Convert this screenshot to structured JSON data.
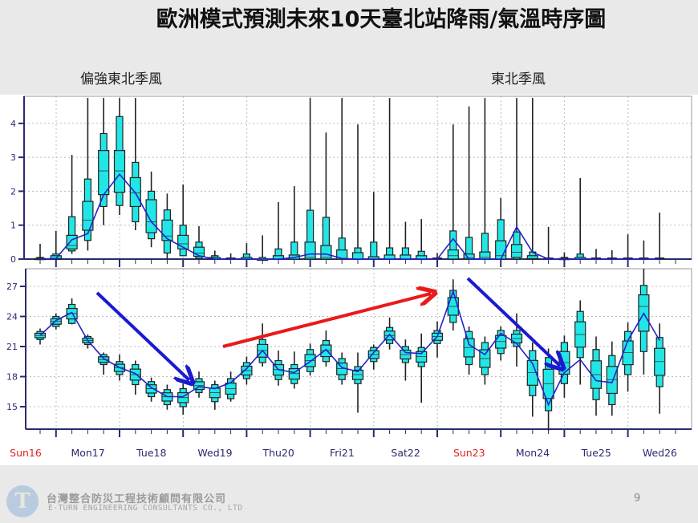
{
  "title": "歐洲模式預測未來10天臺北站降雨/氣溫時序圖",
  "annotations": {
    "left_note": "偏強東北季風",
    "right_note": "東北季風"
  },
  "footer": {
    "company_cn": "台灣整合防災工程技術顧問有限公司",
    "company_en": "E-TURN ENGINEERING CONSULTANTS CO., LTD",
    "logo_text": "T",
    "page_number": "9"
  },
  "colors": {
    "box_fill": "#22e6e6",
    "mean_line": "#2222cc",
    "weekend_label": "#dd2222",
    "weekday_label": "#2a2a70",
    "arrow_blue": "#1a1ad0",
    "arrow_red": "#e81a1a"
  },
  "chart_data": [
    {
      "type": "boxplot",
      "panel": "precipitation",
      "x_labels": [
        "Sun16",
        "Mon17",
        "Tue18",
        "Wed19",
        "Thu20",
        "Fri21",
        "Sat22",
        "Sun23",
        "Mon24",
        "Tue25",
        "Wed26"
      ],
      "x_label_colors": [
        "red",
        "navy",
        "navy",
        "navy",
        "navy",
        "navy",
        "navy",
        "red",
        "navy",
        "navy",
        "navy"
      ],
      "step_hours": 6,
      "yticks": [
        0,
        1,
        2,
        3,
        4
      ],
      "ylim": [
        0,
        4.8
      ],
      "grid": true,
      "max": [
        0.45,
        0.83,
        3.07,
        5,
        5,
        5,
        5,
        2.58,
        1.93,
        2.2,
        0.97,
        0.25,
        0.17,
        0.47,
        0.7,
        1.68,
        2.15,
        5,
        3.73,
        5,
        3.97,
        1.98,
        5,
        1.1,
        1.18,
        0.18,
        3.97,
        4.5,
        5,
        1.8,
        5,
        5,
        0.95,
        0.2,
        2.39,
        0.3,
        0.26,
        0.73,
        0.55,
        1.37
      ],
      "p90": [
        0.05,
        0.15,
        1.25,
        2.36,
        3.7,
        4.2,
        2.85,
        2.0,
        1.45,
        1.0,
        0.5,
        0.1,
        0,
        0.15,
        0.05,
        0.3,
        0.5,
        1.44,
        1.23,
        0.62,
        0.33,
        0.5,
        0.33,
        0.33,
        0.23,
        0,
        0.83,
        0.64,
        0.76,
        1.16,
        0.8,
        0.21,
        0,
        0.05,
        0.15,
        0,
        0,
        0,
        0,
        0
      ],
      "p75": [
        0.02,
        0.1,
        0.7,
        1.7,
        3.2,
        3.2,
        2.4,
        1.75,
        1.15,
        0.7,
        0.35,
        0.05,
        0,
        0.05,
        0,
        0.1,
        0.12,
        0.5,
        0.4,
        0.27,
        0.19,
        0.07,
        0.12,
        0.12,
        0.1,
        0,
        0.27,
        0.15,
        0.21,
        0.54,
        0.43,
        0.1,
        0,
        0.02,
        0.05,
        0,
        0,
        0,
        0,
        0
      ],
      "median": [
        0,
        0.02,
        0.4,
        1.15,
        2.6,
        2.6,
        1.95,
        1.1,
        0.68,
        0.45,
        0.18,
        0,
        0,
        0,
        0,
        0,
        0,
        0.05,
        0.05,
        0,
        0,
        0,
        0,
        0,
        0,
        0,
        0.1,
        0.03,
        0.05,
        0.1,
        0.2,
        0.02,
        0,
        0,
        0,
        0,
        0,
        0,
        0,
        0
      ],
      "p25": [
        0,
        0,
        0.3,
        0.85,
        1.9,
        1.97,
        1.55,
        0.78,
        0.55,
        0.3,
        0.08,
        0,
        0,
        0,
        0,
        0,
        0,
        0,
        0,
        0,
        0,
        0,
        0,
        0,
        0,
        0,
        0,
        0,
        0,
        0,
        0.05,
        0,
        0,
        0,
        0,
        0,
        0,
        0,
        0,
        0
      ],
      "p10": [
        0,
        0,
        0.24,
        0.55,
        1.55,
        1.58,
        1.1,
        0.6,
        0.18,
        0.1,
        0.02,
        0,
        0,
        0,
        0,
        0,
        0,
        0,
        0,
        0,
        0,
        0,
        0,
        0,
        0,
        0,
        0,
        0,
        0,
        0,
        0,
        0,
        0,
        0,
        0,
        0,
        0,
        0,
        0,
        0
      ],
      "min": [
        0,
        0,
        0.15,
        0.25,
        1.0,
        1.3,
        0.85,
        0.35,
        0,
        0.1,
        0,
        0,
        0,
        0,
        0,
        0,
        0,
        0,
        0,
        0,
        0,
        0,
        0,
        0,
        0,
        0,
        0,
        0,
        0,
        0,
        0,
        0,
        0,
        0,
        0,
        0,
        0,
        0,
        0,
        0
      ],
      "mean": [
        0,
        0.02,
        0.57,
        0.75,
        1.9,
        2.5,
        1.95,
        1.1,
        0.6,
        0.35,
        0.1,
        0,
        0,
        0,
        0,
        0,
        0.05,
        0.15,
        0.15,
        0.02,
        0,
        0,
        0,
        0,
        0,
        0,
        0.6,
        0,
        0,
        0,
        0.95,
        0.2,
        0,
        0,
        0,
        0,
        0,
        0,
        0,
        0
      ]
    },
    {
      "type": "boxplot",
      "panel": "temperature",
      "yticks": [
        15,
        18,
        21,
        24,
        27
      ],
      "ylim": [
        12.8,
        28.8
      ],
      "grid": true,
      "max": [
        22.8,
        24.3,
        25.8,
        22.2,
        20.4,
        20.2,
        19.6,
        17.9,
        17.2,
        17.3,
        18.5,
        17.6,
        18.5,
        20.0,
        23.3,
        20.6,
        20.5,
        21.3,
        22.6,
        20.4,
        20.4,
        21.2,
        23.9,
        21.7,
        22.3,
        23.5,
        27.7,
        23.0,
        22.0,
        23.0,
        24.3,
        21.4,
        20.8,
        22.1,
        25.6,
        22.0,
        21.5,
        23.4,
        28.8,
        23.3
      ],
      "p90": [
        22.5,
        24.0,
        25.2,
        22.0,
        20.2,
        19.5,
        19.2,
        17.5,
        16.7,
        16.8,
        17.8,
        17.2,
        17.8,
        19.4,
        21.7,
        19.6,
        19.2,
        20.7,
        21.6,
        19.8,
        19.0,
        20.9,
        22.9,
        21.0,
        20.9,
        22.6,
        26.6,
        22.5,
        21.4,
        22.6,
        22.6,
        20.6,
        19.9,
        21.4,
        24.5,
        20.7,
        20.1,
        22.5,
        27.1,
        21.9
      ],
      "median": [
        22.1,
        23.5,
        24.3,
        21.6,
        19.7,
        18.9,
        18.2,
        16.8,
        16.0,
        15.9,
        17.1,
        16.4,
        16.8,
        18.6,
        20.6,
        18.7,
        18.3,
        19.6,
        20.6,
        18.8,
        18.2,
        20.2,
        22.1,
        20.2,
        20.0,
        22.0,
        25.0,
        20.9,
        19.8,
        21.5,
        21.8,
        18.4,
        17.3,
        19.4,
        22.2,
        18.2,
        17.7,
        20.4,
        25.0,
        19.5
      ],
      "p10": [
        21.7,
        23.0,
        23.3,
        21.2,
        19.2,
        18.2,
        17.2,
        16.0,
        15.2,
        15.0,
        16.4,
        15.5,
        15.8,
        17.8,
        19.4,
        17.7,
        17.3,
        18.5,
        19.5,
        17.7,
        17.3,
        19.5,
        21.3,
        19.4,
        19.0,
        21.3,
        23.4,
        19.2,
        18.2,
        20.3,
        21.0,
        16.1,
        14.6,
        17.3,
        19.9,
        15.7,
        15.2,
        18.2,
        20.5,
        17.0
      ],
      "min": [
        21.2,
        22.7,
        23.2,
        20.8,
        18.2,
        17.6,
        16.2,
        15.5,
        14.7,
        14.2,
        15.9,
        14.7,
        15.5,
        17.2,
        19.0,
        17.1,
        16.8,
        18.1,
        19.0,
        17.2,
        14.4,
        18.7,
        20.7,
        17.6,
        15.4,
        19.9,
        22.6,
        18.2,
        17.2,
        19.6,
        19.0,
        14.0,
        12.6,
        15.9,
        17.2,
        14.1,
        14.1,
        16.5,
        18.2,
        14.3
      ],
      "mean": [
        22.1,
        23.6,
        24.4,
        21.6,
        19.8,
        18.9,
        18.3,
        16.9,
        16.0,
        16.0,
        17.0,
        16.8,
        17.4,
        18.8,
        20.6,
        18.7,
        18.4,
        19.5,
        20.7,
        18.9,
        18.5,
        20.4,
        22.2,
        20.4,
        20.3,
        22.0,
        26.5,
        21.2,
        20.2,
        22.3,
        21.3,
        19.3,
        15.2,
        18.4,
        19.7,
        17.6,
        17.4,
        21.6,
        24.3,
        21.6
      ]
    }
  ]
}
